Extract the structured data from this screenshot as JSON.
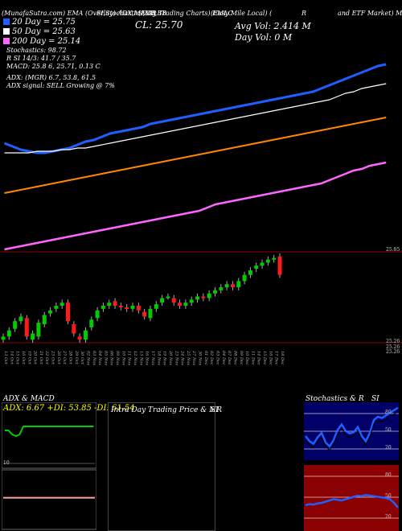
{
  "header": {
    "top_line": "(MunafaSutra.com) EMA (Overlay) ADX,MACD,BB",
    "top_line_mid": "SI,Stochastics,MR",
    "top_line_chart": "(Easy Trading Charts) EMLC",
    "top_line_right_a": "(Easy Mile Local) (",
    "top_line_right_b": "R",
    "top_line_right_c": "and ETF Market) M",
    "cl_value": "CL: 25.70",
    "avg_vol": "Avg Vol: 2.414  M",
    "day_vol": "Day Vol: 0  M"
  },
  "legend": [
    {
      "label": "20  Day = 25.75",
      "color": "#1f5fff"
    },
    {
      "label": "50  Day = 25.63",
      "color": "#ffffff"
    },
    {
      "label": "200  Day = 25.14",
      "color": "#ff66ff"
    }
  ],
  "indicators_text": [
    "Stochastics: 98.72",
    "R                    SI 14/3: 41.7 / 35.7",
    "MACD: 25.8          6,  25.71,  0.13 C",
    "ADX:                    (MGR) 6.7,  53.8,  61.5",
    "ADX  signal: SELL  Growing @ 7%"
  ],
  "colors": {
    "ema20": "#1f5fff",
    "ema50": "#ffffff",
    "ema200": "#ff66ff",
    "ema100": "#ff8800",
    "up": "#00cc00",
    "down": "#ff1a1a",
    "level_line": "#8b0000",
    "stoch_bg": "#000066",
    "si_bg": "#8b0000",
    "adx_line": "#00cc00"
  },
  "chart_data": [
    {
      "type": "line",
      "title": "EMLC",
      "x": [
        "13 Oct",
        "14 Oct",
        "15 Oct",
        "16 Oct",
        "19 Oct",
        "20 Oct",
        "21 Oct",
        "22 Oct",
        "23 Oct",
        "26 Oct",
        "27 Oct",
        "28 Oct",
        "29 Oct",
        "30 Oct",
        "02 Nov",
        "03 Nov",
        "04 Nov",
        "05 Nov",
        "06 Nov",
        "09 Nov",
        "10 Nov",
        "11 Nov",
        "12 Nov",
        "13 Nov",
        "16 Nov",
        "17 Nov",
        "18 Nov",
        "19 Nov",
        "20 Nov",
        "23 Nov",
        "24 Nov",
        "25 Nov",
        "27 Nov",
        "30 Nov",
        "01 Dec",
        "02 Dec",
        "03 Dec",
        "04 Dec",
        "07 Dec",
        "08 Dec",
        "09 Dec",
        "10 Dec",
        "11 Dec",
        "14 Dec",
        "15 Dec",
        "16 Dec",
        "17 Dec",
        "18 Dec"
      ],
      "series": [
        {
          "name": "20 Day",
          "values": [
            25.26,
            25.24,
            25.22,
            25.21,
            25.2,
            25.2,
            25.21,
            25.22,
            25.23,
            25.25,
            25.27,
            25.28,
            25.3,
            25.32,
            25.33,
            25.34,
            25.35,
            25.36,
            25.38,
            25.39,
            25.4,
            25.41,
            25.42,
            25.43,
            25.44,
            25.45,
            25.46,
            25.47,
            25.48,
            25.49,
            25.5,
            25.51,
            25.52,
            25.53,
            25.54,
            25.55,
            25.56,
            25.57,
            25.58,
            25.6,
            25.62,
            25.64,
            25.66,
            25.68,
            25.7,
            25.72,
            25.74,
            25.75
          ]
        },
        {
          "name": "50 Day",
          "values": [
            25.2,
            25.2,
            25.2,
            25.2,
            25.21,
            25.21,
            25.21,
            25.22,
            25.22,
            25.23,
            25.23,
            25.24,
            25.25,
            25.26,
            25.27,
            25.28,
            25.29,
            25.3,
            25.31,
            25.32,
            25.33,
            25.34,
            25.35,
            25.36,
            25.37,
            25.38,
            25.39,
            25.4,
            25.41,
            25.42,
            25.43,
            25.44,
            25.45,
            25.46,
            25.47,
            25.48,
            25.49,
            25.5,
            25.51,
            25.52,
            25.53,
            25.55,
            25.57,
            25.58,
            25.6,
            25.61,
            25.62,
            25.63
          ]
        },
        {
          "name": "100 Day",
          "values": [
            24.95,
            24.96,
            24.97,
            24.98,
            24.99,
            25.0,
            25.01,
            25.02,
            25.03,
            25.04,
            25.05,
            25.06,
            25.07,
            25.08,
            25.09,
            25.1,
            25.11,
            25.12,
            25.13,
            25.14,
            25.15,
            25.16,
            25.17,
            25.18,
            25.19,
            25.2,
            25.21,
            25.22,
            25.23,
            25.24,
            25.25,
            25.26,
            25.27,
            25.28,
            25.29,
            25.3,
            25.31,
            25.32,
            25.33,
            25.34,
            25.35,
            25.36,
            25.37,
            25.38,
            25.39,
            25.4,
            25.41,
            25.42
          ]
        },
        {
          "name": "200 Day",
          "values": [
            24.6,
            24.61,
            24.62,
            24.63,
            24.64,
            24.65,
            24.66,
            24.67,
            24.68,
            24.69,
            24.7,
            24.71,
            24.72,
            24.73,
            24.74,
            24.75,
            24.76,
            24.77,
            24.78,
            24.79,
            24.8,
            24.81,
            24.82,
            24.83,
            24.84,
            24.86,
            24.88,
            24.89,
            24.9,
            24.91,
            24.92,
            24.93,
            24.94,
            24.95,
            24.96,
            24.97,
            24.98,
            24.99,
            25.0,
            25.01,
            25.03,
            25.05,
            25.07,
            25.09,
            25.1,
            25.12,
            25.13,
            25.14
          ]
        }
      ]
    },
    {
      "type": "bar",
      "title": "Price candles",
      "x": [
        "13 Oct",
        "14 Oct",
        "15 Oct",
        "16 Oct",
        "19 Oct",
        "20 Oct",
        "21 Oct",
        "22 Oct",
        "23 Oct",
        "26 Oct",
        "27 Oct",
        "28 Oct",
        "29 Oct",
        "30 Oct",
        "02 Nov",
        "03 Nov",
        "04 Nov",
        "05 Nov",
        "06 Nov",
        "09 Nov",
        "10 Nov",
        "11 Nov",
        "12 Nov",
        "13 Nov",
        "16 Nov",
        "17 Nov",
        "18 Nov",
        "19 Nov",
        "20 Nov",
        "23 Nov",
        "24 Nov",
        "25 Nov",
        "27 Nov",
        "30 Nov",
        "01 Dec",
        "02 Dec",
        "03 Dec",
        "04 Dec",
        "07 Dec",
        "08 Dec",
        "09 Dec",
        "10 Dec",
        "11 Dec",
        "14 Dec",
        "15 Dec",
        "16 Dec",
        "17 Dec",
        "18 Dec"
      ],
      "open": [
        25.28,
        25.3,
        25.35,
        25.4,
        25.42,
        25.28,
        25.3,
        25.38,
        25.45,
        25.48,
        25.5,
        25.52,
        25.38,
        25.3,
        25.28,
        25.36,
        25.42,
        25.48,
        25.5,
        25.53,
        25.5,
        25.49,
        25.48,
        25.5,
        25.46,
        25.42,
        25.48,
        25.52,
        25.56,
        25.55,
        25.52,
        25.5,
        25.52,
        25.54,
        25.56,
        25.55,
        25.58,
        25.6,
        25.62,
        25.64,
        25.62,
        25.66,
        25.7,
        25.74,
        25.76,
        25.78,
        25.8,
        25.82
      ],
      "close": [
        25.3,
        25.34,
        25.4,
        25.43,
        25.3,
        25.32,
        25.39,
        25.44,
        25.47,
        25.5,
        25.52,
        25.4,
        25.32,
        25.28,
        25.34,
        25.41,
        25.47,
        25.5,
        25.52,
        25.5,
        25.49,
        25.48,
        25.5,
        25.47,
        25.43,
        25.48,
        25.51,
        25.55,
        25.56,
        25.52,
        25.5,
        25.52,
        25.54,
        25.56,
        25.55,
        25.58,
        25.6,
        25.62,
        25.64,
        25.62,
        25.66,
        25.7,
        25.73,
        25.76,
        25.78,
        25.8,
        25.81,
        25.7
      ],
      "ylim": [
        25.26,
        25.85
      ],
      "ylabel_ticks": [
        "25.26",
        "25.26",
        "25.26",
        "25.85"
      ]
    },
    {
      "type": "line",
      "title": "ADX  & MACD",
      "label": "ADX: 6.67  +DI: 53.85  -DI: 61.54",
      "y_low_label": "10",
      "series": [
        {
          "name": "ADX",
          "values": [
            45,
            45,
            40,
            38,
            40,
            50,
            50,
            50,
            50,
            50,
            50,
            50,
            50,
            50,
            50,
            50,
            50,
            50,
            50,
            50,
            50,
            50,
            50,
            50,
            50
          ]
        }
      ]
    },
    {
      "type": "line",
      "title": "Intra  Day  Trading  Price  &  MR",
      "si_label": "SI"
    },
    {
      "type": "line",
      "title": "Stochastics  &  R",
      "si_label": "SI",
      "y_ticks": [
        "80",
        "50",
        "20"
      ],
      "si_y_ticks": [
        "80",
        "50",
        "20"
      ]
    }
  ],
  "price_axis_labels": {
    "top": "25.85",
    "bottom1": "25.26",
    "bottom2": "25.26",
    "bottom3": "25.26"
  }
}
